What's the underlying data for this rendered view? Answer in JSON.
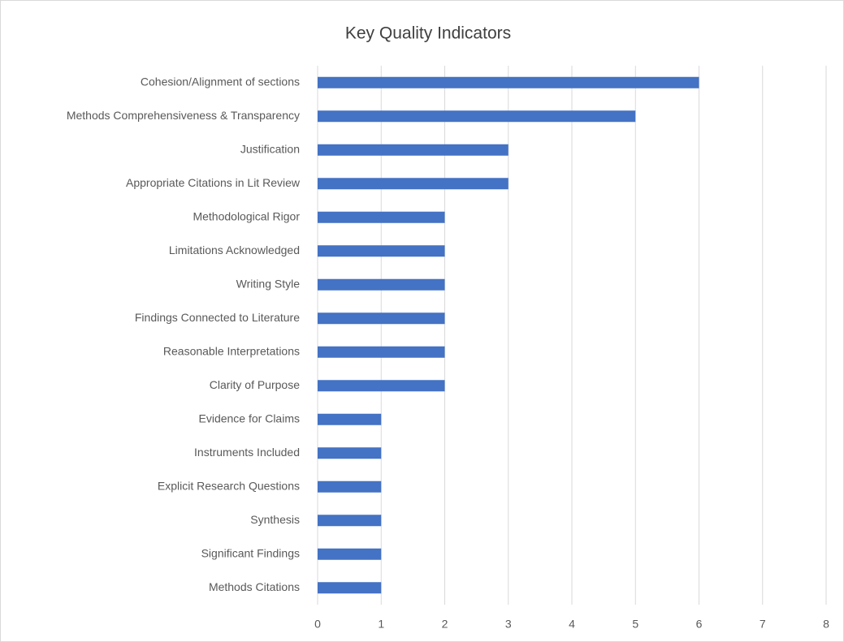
{
  "chart_data": {
    "type": "bar",
    "orientation": "horizontal",
    "title": "Key Quality Indicators",
    "categories": [
      "Cohesion/Alignment of sections",
      "Methods Comprehensiveness & Transparency",
      "Justification",
      "Appropriate Citations in Lit Review",
      "Methodological Rigor",
      "Limitations Acknowledged",
      "Writing Style",
      "Findings Connected to Literature",
      "Reasonable Interpretations",
      "Clarity of Purpose",
      "Evidence for Claims",
      "Instruments Included",
      "Explicit Research Questions",
      "Synthesis",
      "Significant Findings",
      "Methods Citations"
    ],
    "values": [
      6,
      5,
      3,
      3,
      2,
      2,
      2,
      2,
      2,
      2,
      1,
      1,
      1,
      1,
      1,
      1
    ],
    "color": "#4472c4",
    "xlim": [
      0,
      8
    ],
    "xticks": [
      0,
      1,
      2,
      3,
      4,
      5,
      6,
      7,
      8
    ],
    "grid": true
  }
}
